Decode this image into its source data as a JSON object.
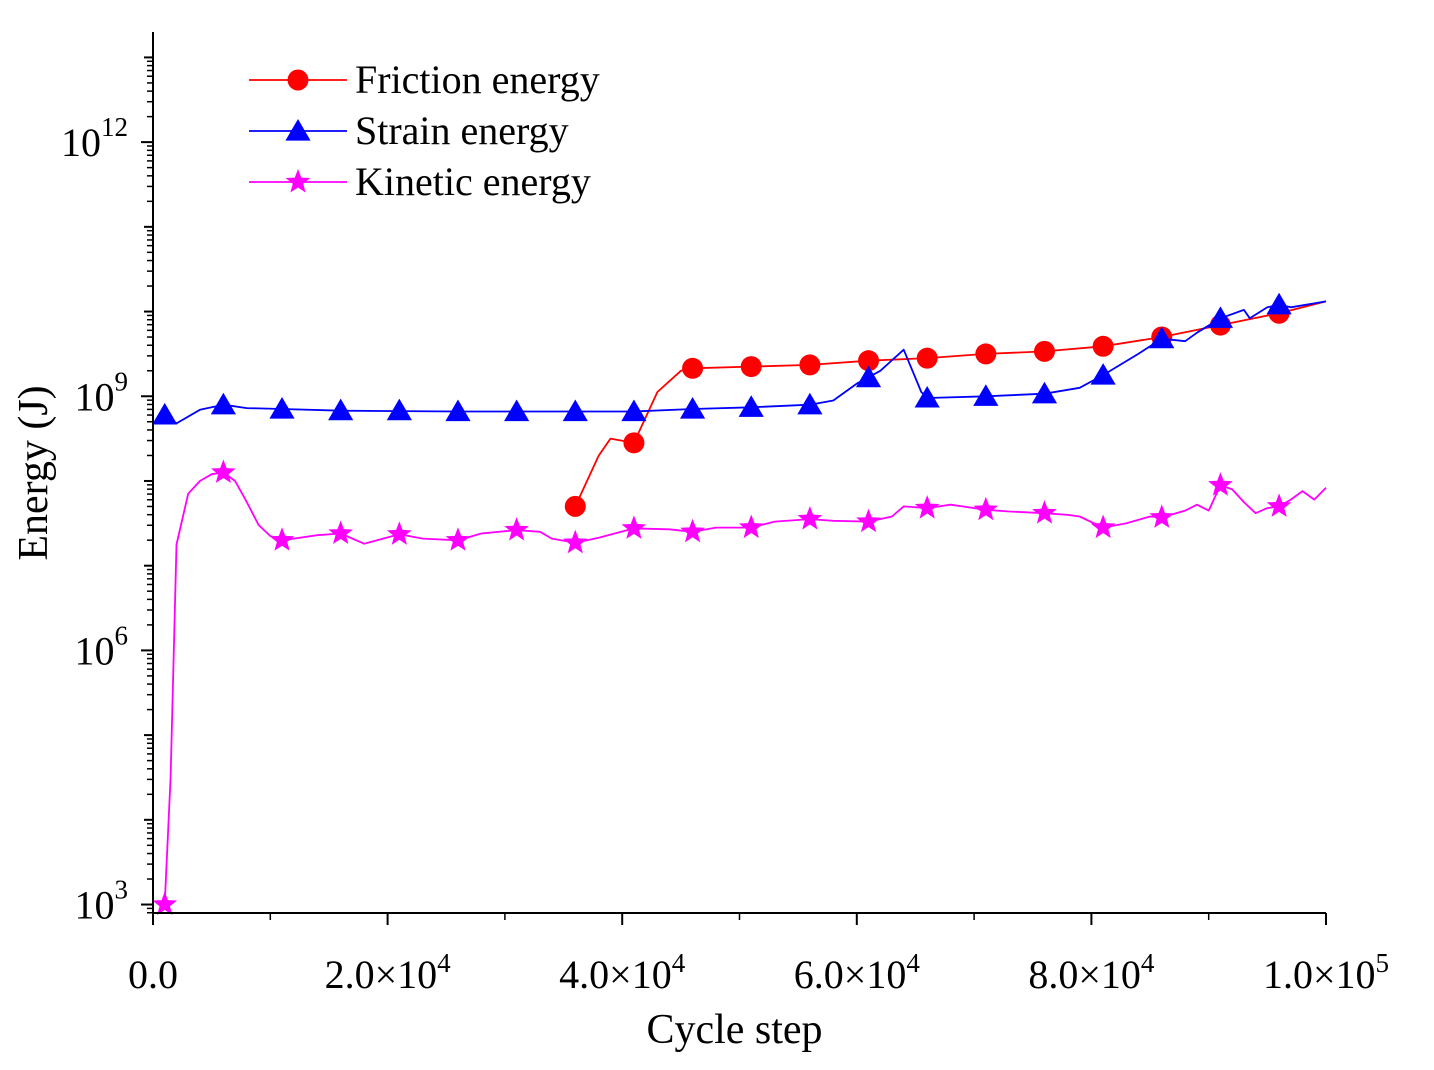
{
  "colors": {
    "friction": "#ff0000",
    "strain": "#0000ff",
    "kinetic": "#ff00ff",
    "axis": "#000000"
  },
  "chart_data": {
    "type": "line",
    "title": "",
    "xlabel": "Cycle step",
    "ylabel": "Energy (J)",
    "xlim": [
      0,
      100000
    ],
    "ylim_log10": [
      2.9,
      13.3
    ],
    "yscale": "log",
    "x_ticks": [
      0,
      20000,
      40000,
      60000,
      80000,
      100000
    ],
    "x_tick_labels": [
      {
        "mantissa": "0.0",
        "exponent": ""
      },
      {
        "mantissa": "2.0×10",
        "exponent": "4"
      },
      {
        "mantissa": "4.0×10",
        "exponent": "4"
      },
      {
        "mantissa": "6.0×10",
        "exponent": "4"
      },
      {
        "mantissa": "8.0×10",
        "exponent": "4"
      },
      {
        "mantissa": "1.0×10",
        "exponent": "5"
      }
    ],
    "y_ticks_log10": [
      3,
      6,
      9,
      12
    ],
    "y_tick_labels": [
      {
        "base": "10",
        "exponent": "3"
      },
      {
        "base": "10",
        "exponent": "6"
      },
      {
        "base": "10",
        "exponent": "9"
      },
      {
        "base": "10",
        "exponent": "12"
      }
    ],
    "legend_position": "top-left",
    "series": [
      {
        "name": "Friction energy",
        "marker": "circle",
        "color": "#ff0000",
        "line_log10": [
          [
            36000,
            7.7
          ],
          [
            37000,
            8.0
          ],
          [
            38000,
            8.3
          ],
          [
            39000,
            8.5
          ],
          [
            41000,
            8.45
          ],
          [
            43000,
            9.05
          ],
          [
            45000,
            9.3
          ],
          [
            46000,
            9.33
          ],
          [
            56000,
            9.37
          ],
          [
            61000,
            9.42
          ],
          [
            66000,
            9.45
          ],
          [
            71000,
            9.5
          ],
          [
            76000,
            9.53
          ],
          [
            81000,
            9.59
          ],
          [
            86000,
            9.7
          ],
          [
            91000,
            9.84
          ],
          [
            96000,
            9.98
          ],
          [
            100000,
            10.12
          ]
        ],
        "markers_log10": [
          [
            36000,
            7.7
          ],
          [
            41000,
            8.45
          ],
          [
            46000,
            9.33
          ],
          [
            51000,
            9.35
          ],
          [
            56000,
            9.37
          ],
          [
            61000,
            9.42
          ],
          [
            66000,
            9.45
          ],
          [
            71000,
            9.5
          ],
          [
            76000,
            9.53
          ],
          [
            81000,
            9.59
          ],
          [
            86000,
            9.7
          ],
          [
            91000,
            9.84
          ],
          [
            96000,
            9.98
          ]
        ]
      },
      {
        "name": "Strain energy",
        "marker": "triangle",
        "color": "#0000ff",
        "line_log10": [
          [
            1000,
            8.78
          ],
          [
            2000,
            8.68
          ],
          [
            4000,
            8.84
          ],
          [
            6000,
            8.9
          ],
          [
            8000,
            8.86
          ],
          [
            11000,
            8.85
          ],
          [
            16000,
            8.83
          ],
          [
            26000,
            8.82
          ],
          [
            36000,
            8.82
          ],
          [
            41000,
            8.82
          ],
          [
            46000,
            8.85
          ],
          [
            51000,
            8.87
          ],
          [
            56000,
            8.9
          ],
          [
            58000,
            8.95
          ],
          [
            60000,
            9.15
          ],
          [
            62000,
            9.3
          ],
          [
            64000,
            9.55
          ],
          [
            65500,
            9.05
          ],
          [
            66000,
            8.98
          ],
          [
            71000,
            9.0
          ],
          [
            76000,
            9.03
          ],
          [
            79000,
            9.1
          ],
          [
            81000,
            9.25
          ],
          [
            84000,
            9.5
          ],
          [
            86000,
            9.68
          ],
          [
            88000,
            9.65
          ],
          [
            89000,
            9.75
          ],
          [
            91000,
            9.92
          ],
          [
            93000,
            10.02
          ],
          [
            93500,
            9.92
          ],
          [
            95000,
            10.05
          ],
          [
            96000,
            10.08
          ],
          [
            97000,
            10.05
          ],
          [
            100000,
            10.12
          ]
        ],
        "markers_log10": [
          [
            1000,
            8.78
          ],
          [
            6000,
            8.9
          ],
          [
            11000,
            8.85
          ],
          [
            16000,
            8.83
          ],
          [
            21000,
            8.83
          ],
          [
            26000,
            8.82
          ],
          [
            31000,
            8.82
          ],
          [
            36000,
            8.82
          ],
          [
            41000,
            8.82
          ],
          [
            46000,
            8.85
          ],
          [
            51000,
            8.87
          ],
          [
            56000,
            8.9
          ],
          [
            61000,
            9.22
          ],
          [
            66000,
            8.98
          ],
          [
            71000,
            9.0
          ],
          [
            76000,
            9.03
          ],
          [
            81000,
            9.25
          ],
          [
            86000,
            9.68
          ],
          [
            91000,
            9.92
          ],
          [
            96000,
            10.08
          ]
        ]
      },
      {
        "name": "Kinetic energy",
        "marker": "star",
        "color": "#ff00ff",
        "line_log10": [
          [
            1000,
            3.0
          ],
          [
            1500,
            4.5
          ],
          [
            2000,
            7.25
          ],
          [
            3000,
            7.85
          ],
          [
            4000,
            8.0
          ],
          [
            5000,
            8.08
          ],
          [
            6000,
            8.1
          ],
          [
            7000,
            8.0
          ],
          [
            8000,
            7.75
          ],
          [
            9000,
            7.48
          ],
          [
            10000,
            7.35
          ],
          [
            11000,
            7.3
          ],
          [
            12000,
            7.32
          ],
          [
            14000,
            7.36
          ],
          [
            16000,
            7.38
          ],
          [
            18000,
            7.26
          ],
          [
            21000,
            7.37
          ],
          [
            23000,
            7.32
          ],
          [
            26000,
            7.3
          ],
          [
            28000,
            7.38
          ],
          [
            31000,
            7.42
          ],
          [
            33000,
            7.4
          ],
          [
            34000,
            7.32
          ],
          [
            36000,
            7.27
          ],
          [
            38000,
            7.33
          ],
          [
            41000,
            7.44
          ],
          [
            44000,
            7.43
          ],
          [
            46000,
            7.4
          ],
          [
            48000,
            7.45
          ],
          [
            51000,
            7.45
          ],
          [
            53000,
            7.52
          ],
          [
            56000,
            7.55
          ],
          [
            58000,
            7.53
          ],
          [
            61000,
            7.52
          ],
          [
            63000,
            7.58
          ],
          [
            64000,
            7.7
          ],
          [
            66000,
            7.68
          ],
          [
            68000,
            7.72
          ],
          [
            69000,
            7.7
          ],
          [
            71000,
            7.66
          ],
          [
            73000,
            7.64
          ],
          [
            76000,
            7.62
          ],
          [
            78000,
            7.6
          ],
          [
            79000,
            7.58
          ],
          [
            81000,
            7.45
          ],
          [
            83000,
            7.5
          ],
          [
            85000,
            7.58
          ],
          [
            86000,
            7.57
          ],
          [
            88000,
            7.65
          ],
          [
            89000,
            7.72
          ],
          [
            90000,
            7.65
          ],
          [
            91000,
            7.95
          ],
          [
            92000,
            7.9
          ],
          [
            93000,
            7.75
          ],
          [
            94000,
            7.62
          ],
          [
            95000,
            7.68
          ],
          [
            96000,
            7.7
          ],
          [
            97000,
            7.78
          ],
          [
            98000,
            7.88
          ],
          [
            99000,
            7.78
          ],
          [
            100000,
            7.92
          ]
        ],
        "markers_log10": [
          [
            1000,
            3.0
          ],
          [
            6000,
            8.1
          ],
          [
            11000,
            7.3
          ],
          [
            16000,
            7.38
          ],
          [
            21000,
            7.37
          ],
          [
            26000,
            7.3
          ],
          [
            31000,
            7.42
          ],
          [
            36000,
            7.27
          ],
          [
            41000,
            7.44
          ],
          [
            46000,
            7.4
          ],
          [
            51000,
            7.45
          ],
          [
            56000,
            7.55
          ],
          [
            61000,
            7.52
          ],
          [
            66000,
            7.68
          ],
          [
            71000,
            7.66
          ],
          [
            76000,
            7.62
          ],
          [
            81000,
            7.45
          ],
          [
            86000,
            7.57
          ],
          [
            91000,
            7.95
          ],
          [
            96000,
            7.7
          ]
        ]
      }
    ]
  }
}
